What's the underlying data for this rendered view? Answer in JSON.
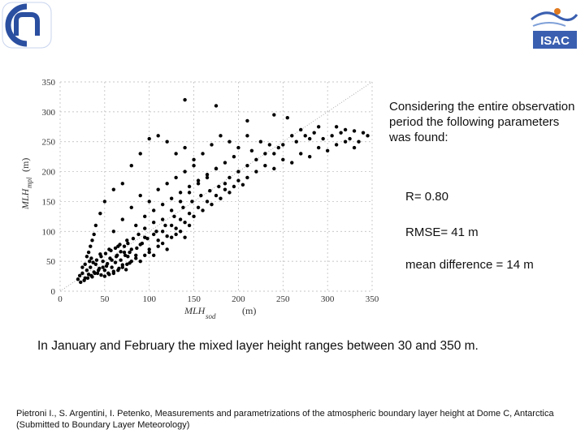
{
  "logos": {
    "left_name": "cnr-logo",
    "right_text": "ISAC"
  },
  "side_text": {
    "intro": "Considering the entire observation period  the following  parameters was found:",
    "r": "R= 0.80",
    "rmse": "RMSE= 41 m",
    "mean_difference": "mean difference = 14 m"
  },
  "summary": "In January and February the mixed layer height  ranges between 30 and 350 m.",
  "citation": "Pietroni  I., S. Argentini, I. Petenko, Measurements and parametrizations of the atmospheric boundary layer height at Dome C, Antarctica  (Submitted to Boundary Layer Meteorology)",
  "colors": {
    "points": "#000000",
    "grid": "#b5b5b5",
    "logo_blue": "#2b4fa0",
    "isac_blue": "#3a5fb0"
  },
  "chart_data": {
    "type": "scatter",
    "xlabel_main": "MLH",
    "xlabel_sub": "sod",
    "xlabel_unit": "(m)",
    "ylabel_main": "MLH",
    "ylabel_sub": "mpl",
    "ylabel_unit": "(m)",
    "xlim": [
      0,
      350
    ],
    "ylim": [
      0,
      350
    ],
    "xticks": [
      "0",
      "50",
      "100",
      "150",
      "200",
      "250",
      "300",
      "350"
    ],
    "yticks": [
      "0",
      "50",
      "100",
      "150",
      "200",
      "250",
      "300",
      "350"
    ],
    "grid": true,
    "reference_line": "1:1 dotted",
    "points": [
      [
        20,
        20
      ],
      [
        22,
        26
      ],
      [
        25,
        30
      ],
      [
        28,
        22
      ],
      [
        30,
        35
      ],
      [
        32,
        28
      ],
      [
        34,
        40
      ],
      [
        36,
        24
      ],
      [
        38,
        32
      ],
      [
        40,
        45
      ],
      [
        42,
        30
      ],
      [
        44,
        38
      ],
      [
        46,
        27
      ],
      [
        48,
        50
      ],
      [
        50,
        35
      ],
      [
        52,
        42
      ],
      [
        54,
        30
      ],
      [
        56,
        55
      ],
      [
        58,
        40
      ],
      [
        60,
        33
      ],
      [
        62,
        48
      ],
      [
        64,
        60
      ],
      [
        66,
        38
      ],
      [
        68,
        52
      ],
      [
        70,
        44
      ],
      [
        72,
        65
      ],
      [
        74,
        36
      ],
      [
        76,
        58
      ],
      [
        78,
        47
      ],
      [
        80,
        70
      ],
      [
        35,
        55
      ],
      [
        45,
        62
      ],
      [
        55,
        70
      ],
      [
        65,
        75
      ],
      [
        75,
        85
      ],
      [
        85,
        60
      ],
      [
        90,
        78
      ],
      [
        95,
        90
      ],
      [
        100,
        70
      ],
      [
        105,
        95
      ],
      [
        110,
        85
      ],
      [
        115,
        100
      ],
      [
        120,
        92
      ],
      [
        125,
        110
      ],
      [
        130,
        105
      ],
      [
        135,
        120
      ],
      [
        140,
        115
      ],
      [
        145,
        130
      ],
      [
        150,
        125
      ],
      [
        155,
        140
      ],
      [
        160,
        135
      ],
      [
        165,
        150
      ],
      [
        170,
        145
      ],
      [
        175,
        160
      ],
      [
        180,
        155
      ],
      [
        185,
        170
      ],
      [
        190,
        165
      ],
      [
        195,
        175
      ],
      [
        200,
        185
      ],
      [
        205,
        178
      ],
      [
        60,
        100
      ],
      [
        70,
        120
      ],
      [
        80,
        140
      ],
      [
        90,
        160
      ],
      [
        100,
        150
      ],
      [
        110,
        170
      ],
      [
        120,
        180
      ],
      [
        130,
        190
      ],
      [
        140,
        200
      ],
      [
        150,
        210
      ],
      [
        85,
        110
      ],
      [
        95,
        125
      ],
      [
        105,
        135
      ],
      [
        115,
        145
      ],
      [
        125,
        155
      ],
      [
        135,
        165
      ],
      [
        145,
        175
      ],
      [
        155,
        185
      ],
      [
        165,
        195
      ],
      [
        175,
        205
      ],
      [
        210,
        190
      ],
      [
        220,
        200
      ],
      [
        230,
        210
      ],
      [
        240,
        205
      ],
      [
        250,
        220
      ],
      [
        260,
        215
      ],
      [
        270,
        230
      ],
      [
        280,
        225
      ],
      [
        290,
        240
      ],
      [
        300,
        235
      ],
      [
        310,
        245
      ],
      [
        320,
        250
      ],
      [
        330,
        240
      ],
      [
        260,
        260
      ],
      [
        270,
        270
      ],
      [
        280,
        255
      ],
      [
        290,
        275
      ],
      [
        200,
        240
      ],
      [
        190,
        250
      ],
      [
        180,
        260
      ],
      [
        170,
        245
      ],
      [
        160,
        230
      ],
      [
        150,
        220
      ],
      [
        140,
        240
      ],
      [
        130,
        230
      ],
      [
        120,
        250
      ],
      [
        110,
        260
      ],
      [
        100,
        255
      ],
      [
        90,
        230
      ],
      [
        80,
        210
      ],
      [
        70,
        180
      ],
      [
        60,
        170
      ],
      [
        50,
        150
      ],
      [
        45,
        130
      ],
      [
        40,
        110
      ],
      [
        38,
        95
      ],
      [
        36,
        85
      ],
      [
        34,
        75
      ],
      [
        32,
        65
      ],
      [
        30,
        58
      ],
      [
        140,
        320
      ],
      [
        175,
        310
      ],
      [
        210,
        285
      ],
      [
        240,
        295
      ],
      [
        255,
        290
      ],
      [
        310,
        275
      ],
      [
        320,
        270
      ],
      [
        330,
        268
      ],
      [
        340,
        265
      ],
      [
        210,
        260
      ],
      [
        225,
        250
      ],
      [
        235,
        245
      ],
      [
        245,
        240
      ],
      [
        215,
        235
      ],
      [
        195,
        225
      ],
      [
        185,
        215
      ],
      [
        175,
        205
      ],
      [
        165,
        190
      ],
      [
        155,
        180
      ],
      [
        145,
        165
      ],
      [
        135,
        150
      ],
      [
        125,
        135
      ],
      [
        115,
        120
      ],
      [
        105,
        115
      ],
      [
        95,
        105
      ],
      [
        88,
        95
      ],
      [
        82,
        88
      ],
      [
        76,
        80
      ],
      [
        72,
        75
      ],
      [
        68,
        66
      ],
      [
        63,
        58
      ],
      [
        58,
        52
      ],
      [
        53,
        46
      ],
      [
        48,
        40
      ],
      [
        43,
        35
      ],
      [
        39,
        30
      ],
      [
        35,
        26
      ],
      [
        31,
        22
      ],
      [
        27,
        18
      ],
      [
        23,
        15
      ],
      [
        50,
        25
      ],
      [
        55,
        28
      ],
      [
        60,
        30
      ],
      [
        65,
        35
      ],
      [
        70,
        40
      ],
      [
        75,
        45
      ],
      [
        80,
        50
      ],
      [
        85,
        55
      ],
      [
        90,
        50
      ],
      [
        95,
        60
      ],
      [
        100,
        65
      ],
      [
        105,
        60
      ],
      [
        110,
        75
      ],
      [
        115,
        80
      ],
      [
        120,
        70
      ],
      [
        125,
        90
      ],
      [
        130,
        95
      ],
      [
        135,
        100
      ],
      [
        140,
        90
      ],
      [
        145,
        110
      ],
      [
        25,
        40
      ],
      [
        28,
        45
      ],
      [
        33,
        50
      ],
      [
        37,
        48
      ],
      [
        41,
        52
      ],
      [
        46,
        58
      ],
      [
        51,
        63
      ],
      [
        57,
        68
      ],
      [
        62,
        72
      ],
      [
        67,
        78
      ],
      [
        200,
        200
      ],
      [
        210,
        210
      ],
      [
        220,
        220
      ],
      [
        230,
        230
      ],
      [
        240,
        230
      ],
      [
        250,
        245
      ],
      [
        265,
        250
      ],
      [
        275,
        260
      ],
      [
        285,
        265
      ],
      [
        295,
        255
      ],
      [
        305,
        260
      ],
      [
        315,
        265
      ],
      [
        325,
        255
      ],
      [
        335,
        250
      ],
      [
        345,
        260
      ],
      [
        190,
        190
      ],
      [
        185,
        180
      ],
      [
        178,
        175
      ],
      [
        168,
        168
      ],
      [
        158,
        160
      ],
      [
        148,
        150
      ],
      [
        138,
        140
      ],
      [
        128,
        125
      ],
      [
        118,
        110
      ],
      [
        108,
        100
      ],
      [
        98,
        88
      ],
      [
        92,
        80
      ],
      [
        86,
        72
      ],
      [
        78,
        65
      ],
      [
        73,
        60
      ]
    ]
  }
}
